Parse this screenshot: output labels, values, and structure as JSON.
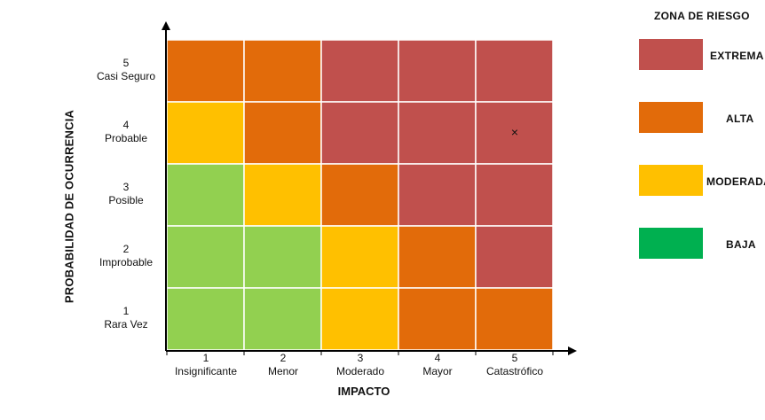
{
  "colors": {
    "extreme": "#c0504d",
    "high": "#e26b0a",
    "moderate": "#ffc000",
    "low": "#92d050",
    "low_legend": "#00b050"
  },
  "axes": {
    "y_title": "PROBABILIDAD DE OCURRENCIA",
    "x_title": "IMPACTO",
    "y_levels": [
      {
        "num": "5",
        "name": "Casi Seguro"
      },
      {
        "num": "4",
        "name": "Probable"
      },
      {
        "num": "3",
        "name": "Posible"
      },
      {
        "num": "2",
        "name": "Improbable"
      },
      {
        "num": "1",
        "name": "Rara Vez"
      }
    ],
    "x_levels": [
      {
        "num": "1",
        "name": "Insignificante"
      },
      {
        "num": "2",
        "name": "Menor"
      },
      {
        "num": "3",
        "name": "Moderado"
      },
      {
        "num": "4",
        "name": "Mayor"
      },
      {
        "num": "5",
        "name": "Catastrófico"
      }
    ]
  },
  "matrix": {
    "rows": [
      [
        "high",
        "high",
        "extreme",
        "extreme",
        "extreme"
      ],
      [
        "moderate",
        "high",
        "extreme",
        "extreme",
        "extreme"
      ],
      [
        "low",
        "moderate",
        "high",
        "extreme",
        "extreme"
      ],
      [
        "low",
        "low",
        "moderate",
        "high",
        "extreme"
      ],
      [
        "low",
        "low",
        "moderate",
        "high",
        "high"
      ]
    ],
    "marker": {
      "symbol": "×",
      "probability": 4,
      "impact": 5
    }
  },
  "legend": {
    "title": "ZONA DE RIESGO",
    "items": [
      {
        "label": "EXTREMA",
        "zone": "extreme"
      },
      {
        "label": "ALTA",
        "zone": "high"
      },
      {
        "label": "MODERADA",
        "zone": "moderate"
      },
      {
        "label": "BAJA",
        "zone": "low_legend"
      }
    ]
  }
}
